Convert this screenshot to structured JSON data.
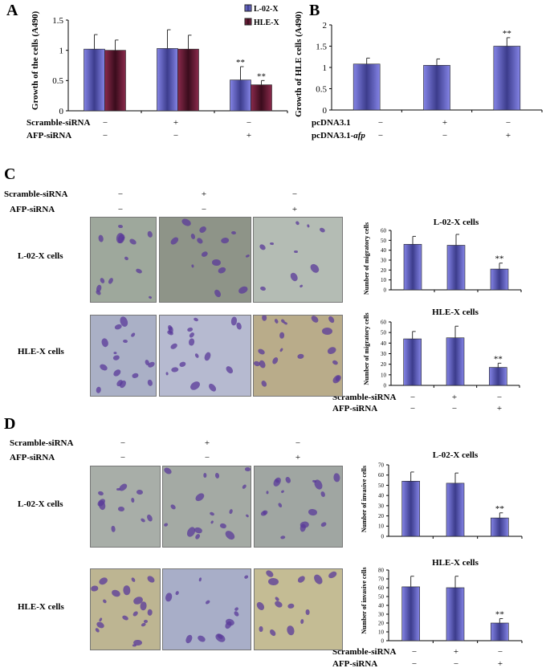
{
  "panels": {
    "A": "A",
    "B": "B",
    "C": "C",
    "D": "D"
  },
  "conditions": {
    "scramble": "Scramble-siRNA",
    "afp": "AFP-siRNA",
    "pcdna": "pcDNA3.1",
    "pcdna_afp_prefix": "pcDNA3.1-",
    "pcdna_afp_italic": "afp",
    "scramble_signs": [
      "−",
      "+",
      "−"
    ],
    "afp_signs": [
      "−",
      "−",
      "+"
    ],
    "pcdna_signs": [
      "−",
      "+",
      "−"
    ],
    "pcdna_afp_signs": [
      "−",
      "−",
      "+"
    ]
  },
  "rows": {
    "l02": "L-02-X cells",
    "hle": "HLE-X cells"
  },
  "colors": {
    "bar_blue": "#8484e6",
    "bar_blue_dark": "#3c3c8c",
    "bar_maroon": "#8a2a4c",
    "bar_maroon_dark": "#3a0c1c"
  },
  "chart_data": [
    {
      "id": "A",
      "type": "bar",
      "title": "",
      "ylabel": "Growth of the cells (A490)",
      "ylim": [
        0,
        1.5
      ],
      "yticks": [
        "0",
        "0.5",
        "1",
        "1.5"
      ],
      "legend": "top-right",
      "series": [
        {
          "name": "L-02-X",
          "values": [
            1.02,
            1.03,
            0.51
          ],
          "errors": [
            0.24,
            0.31,
            0.22
          ],
          "annotations": [
            "",
            "",
            "**"
          ]
        },
        {
          "name": "HLE-X",
          "values": [
            1.0,
            1.02,
            0.43
          ],
          "errors": [
            0.17,
            0.23,
            0.07
          ],
          "annotations": [
            "",
            "",
            "**"
          ]
        }
      ]
    },
    {
      "id": "B",
      "type": "bar",
      "title": "",
      "ylabel": "Growth of HLE cells (A490)",
      "ylim": [
        0,
        2
      ],
      "yticks": [
        "0",
        "0.5",
        "1",
        "1.5",
        "2"
      ],
      "series": [
        {
          "values": [
            1.08,
            1.05,
            1.5
          ],
          "errors": [
            0.14,
            0.15,
            0.2
          ],
          "annotations": [
            "",
            "",
            "**"
          ]
        }
      ]
    },
    {
      "id": "C1",
      "type": "bar",
      "title": "L-02-X cells",
      "ylabel": "Number of migratory cells",
      "ylim": [
        0,
        60
      ],
      "yticks": [
        "0",
        "10",
        "20",
        "30",
        "40",
        "50",
        "60"
      ],
      "series": [
        {
          "values": [
            46,
            45,
            21
          ],
          "errors": [
            8,
            11,
            6
          ],
          "annotations": [
            "",
            "",
            "**"
          ]
        }
      ]
    },
    {
      "id": "C2",
      "type": "bar",
      "title": "HLE-X cells",
      "ylabel": "Number of migratory cells",
      "ylim": [
        0,
        60
      ],
      "yticks": [
        "0",
        "10",
        "20",
        "30",
        "40",
        "50",
        "60"
      ],
      "series": [
        {
          "values": [
            44,
            45,
            17
          ],
          "errors": [
            7,
            11,
            4
          ],
          "annotations": [
            "",
            "",
            "**"
          ]
        }
      ]
    },
    {
      "id": "D1",
      "type": "bar",
      "title": "L-02-X cells",
      "ylabel": "Number of invasive cells",
      "ylim": [
        0,
        70
      ],
      "yticks": [
        "0",
        "10",
        "20",
        "30",
        "40",
        "50",
        "60",
        "70"
      ],
      "series": [
        {
          "values": [
            54,
            52,
            18
          ],
          "errors": [
            9,
            10,
            5
          ],
          "annotations": [
            "",
            "",
            "**"
          ]
        }
      ]
    },
    {
      "id": "D2",
      "type": "bar",
      "title": "HLE-X cells",
      "ylabel": "Number of invasive cells",
      "ylim": [
        0,
        80
      ],
      "yticks": [
        "0",
        "10",
        "20",
        "30",
        "40",
        "50",
        "60",
        "70",
        "80"
      ],
      "series": [
        {
          "values": [
            61,
            60,
            20
          ],
          "errors": [
            12,
            13,
            5
          ],
          "annotations": [
            "",
            "",
            "**"
          ]
        }
      ]
    }
  ]
}
